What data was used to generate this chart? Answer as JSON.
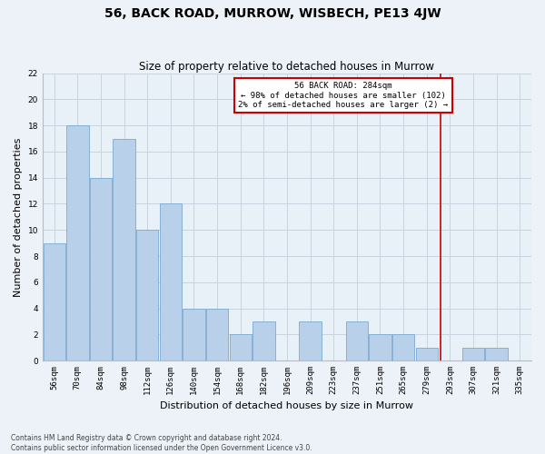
{
  "title": "56, BACK ROAD, MURROW, WISBECH, PE13 4JW",
  "subtitle": "Size of property relative to detached houses in Murrow",
  "xlabel": "Distribution of detached houses by size in Murrow",
  "ylabel": "Number of detached properties",
  "bar_labels": [
    "56sqm",
    "70sqm",
    "84sqm",
    "98sqm",
    "112sqm",
    "126sqm",
    "140sqm",
    "154sqm",
    "168sqm",
    "182sqm",
    "196sqm",
    "209sqm",
    "223sqm",
    "237sqm",
    "251sqm",
    "265sqm",
    "279sqm",
    "293sqm",
    "307sqm",
    "321sqm",
    "335sqm"
  ],
  "bar_values": [
    9,
    18,
    14,
    17,
    10,
    12,
    4,
    4,
    2,
    3,
    0,
    3,
    0,
    3,
    2,
    2,
    1,
    0,
    1,
    1,
    0
  ],
  "bar_color": "#b8d0ea",
  "bar_edge_color": "#7aaacf",
  "grid_color": "#c8d4e0",
  "background_color": "#e8f0f8",
  "fig_background_color": "#edf2f8",
  "red_line_x": 16.6,
  "annotation_text": "56 BACK ROAD: 284sqm\n← 98% of detached houses are smaller (102)\n2% of semi-detached houses are larger (2) →",
  "annotation_box_color": "#ffffff",
  "annotation_border_color": "#cc0000",
  "ylim": [
    0,
    22
  ],
  "yticks": [
    0,
    2,
    4,
    6,
    8,
    10,
    12,
    14,
    16,
    18,
    20,
    22
  ],
  "footer": "Contains HM Land Registry data © Crown copyright and database right 2024.\nContains public sector information licensed under the Open Government Licence v3.0.",
  "title_fontsize": 10,
  "subtitle_fontsize": 8.5,
  "tick_fontsize": 6.5,
  "ylabel_fontsize": 8,
  "xlabel_fontsize": 8,
  "annotation_fontsize": 6.5,
  "footer_fontsize": 5.5
}
